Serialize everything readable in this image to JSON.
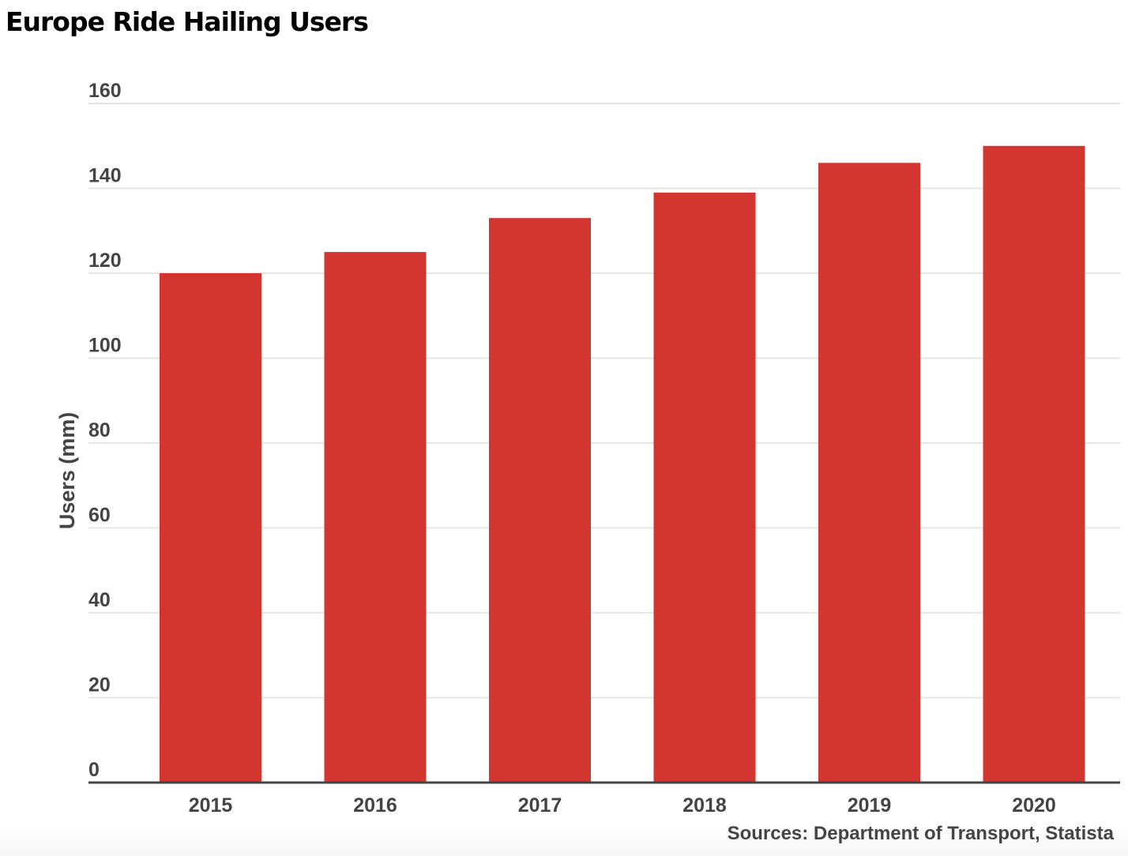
{
  "title": "Europe Ride Hailing Users",
  "source": "Sources: Department of Transport, Statista",
  "colors": {
    "bar": "#d33630",
    "grid": "#e6e6e6",
    "axis": "#444444",
    "text": "#444444",
    "title": "#000000"
  },
  "chart_data": {
    "type": "bar",
    "title": "Europe Ride Hailing Users",
    "xlabel": "",
    "ylabel": "Users (mm)",
    "categories": [
      "2015",
      "2016",
      "2017",
      "2018",
      "2019",
      "2020"
    ],
    "values": [
      120,
      125,
      133,
      139,
      146,
      150
    ],
    "ylim": [
      0,
      160
    ],
    "yticks": [
      0,
      20,
      40,
      60,
      80,
      100,
      120,
      140,
      160
    ],
    "grid": true,
    "legend": "none"
  }
}
